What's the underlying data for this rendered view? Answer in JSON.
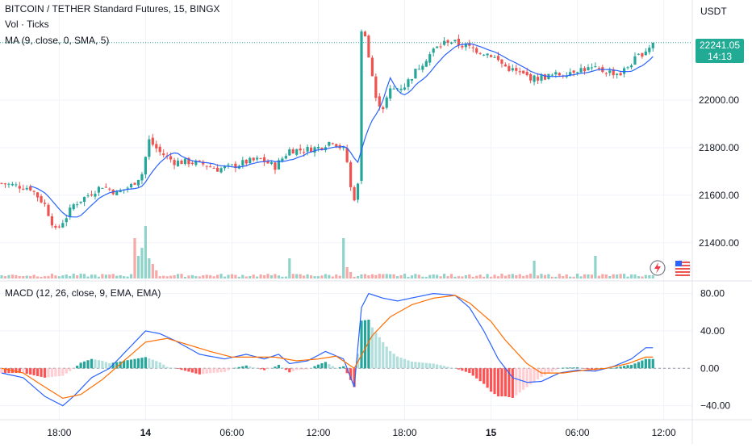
{
  "header": {
    "symbol_line": "BITCOIN / TETHER Standard Futures, 15, BINGX",
    "volume_label": "Vol · Ticks",
    "ma_label": "MA (9, close, 0, SMA, 5)",
    "macd_label": "MACD (12, 26, close, 9, EMA, EMA)",
    "unit": "USDT"
  },
  "last_price": {
    "value": "22241.05",
    "countdown": "14:13"
  },
  "colors": {
    "up": "#26a69a",
    "down": "#ef5350",
    "ma": "#2962ff",
    "macd": "#2962ff",
    "signal": "#ff6d00",
    "vol_up": "#8fd3ca",
    "vol_down": "#f7a9a7",
    "grid": "#f0f3fa"
  },
  "icons": [
    "lightning-icon",
    "us-flag-icon"
  ],
  "chart_data": [
    {
      "type": "candlestick",
      "title": "BITCOIN / TETHER Standard Futures, 15, BINGX",
      "ylabel": "USDT",
      "ylim": [
        21250,
        22420
      ],
      "y_ticks": [
        "21400.00",
        "21600.00",
        "21800.00",
        "22000.00"
      ],
      "x_ticks": [
        "18:00",
        "14",
        "06:00",
        "12:00",
        "18:00",
        "15",
        "06:00",
        "12:00"
      ],
      "x_tick_bold": [
        false,
        true,
        false,
        false,
        false,
        true,
        false,
        false
      ],
      "x_tick_index": [
        16,
        40,
        64,
        88,
        112,
        136,
        160,
        184
      ],
      "candles_count": 182,
      "price_keypoints": [
        [
          0,
          21650
        ],
        [
          4,
          21640
        ],
        [
          8,
          21630
        ],
        [
          12,
          21560
        ],
        [
          15,
          21450
        ],
        [
          18,
          21510
        ],
        [
          20,
          21560
        ],
        [
          24,
          21600
        ],
        [
          28,
          21640
        ],
        [
          32,
          21610
        ],
        [
          36,
          21640
        ],
        [
          39,
          21690
        ],
        [
          41,
          21830
        ],
        [
          44,
          21780
        ],
        [
          48,
          21740
        ],
        [
          52,
          21740
        ],
        [
          56,
          21730
        ],
        [
          60,
          21710
        ],
        [
          64,
          21720
        ],
        [
          68,
          21740
        ],
        [
          72,
          21750
        ],
        [
          76,
          21720
        ],
        [
          80,
          21790
        ],
        [
          84,
          21790
        ],
        [
          88,
          21800
        ],
        [
          92,
          21830
        ],
        [
          95,
          21790
        ],
        [
          96,
          21740
        ],
        [
          97,
          21630
        ],
        [
          98,
          21590
        ],
        [
          99,
          21640
        ],
        [
          100,
          22300
        ],
        [
          101,
          22280
        ],
        [
          102,
          22180
        ],
        [
          103,
          22100
        ],
        [
          104,
          22000
        ],
        [
          106,
          21970
        ],
        [
          108,
          22040
        ],
        [
          112,
          22060
        ],
        [
          116,
          22140
        ],
        [
          120,
          22210
        ],
        [
          124,
          22250
        ],
        [
          128,
          22230
        ],
        [
          132,
          22210
        ],
        [
          136,
          22190
        ],
        [
          140,
          22140
        ],
        [
          144,
          22110
        ],
        [
          148,
          22090
        ],
        [
          152,
          22100
        ],
        [
          156,
          22110
        ],
        [
          160,
          22130
        ],
        [
          164,
          22130
        ],
        [
          168,
          22120
        ],
        [
          172,
          22110
        ],
        [
          176,
          22170
        ],
        [
          179,
          22210
        ],
        [
          181,
          22241
        ]
      ],
      "ma_period": 9,
      "last_price": 22241.05
    },
    {
      "type": "bar",
      "title": "Vol · Ticks",
      "spikes": [
        [
          37,
          50
        ],
        [
          38,
          28
        ],
        [
          39,
          38
        ],
        [
          40,
          65
        ],
        [
          41,
          25
        ],
        [
          42,
          18
        ],
        [
          43,
          10
        ],
        [
          75,
          4
        ],
        [
          80,
          25
        ],
        [
          95,
          50
        ],
        [
          96,
          14
        ],
        [
          97,
          8
        ],
        [
          100,
          5
        ],
        [
          130,
          5
        ],
        [
          148,
          22
        ],
        [
          160,
          6
        ],
        [
          165,
          28
        ]
      ]
    },
    {
      "type": "line",
      "title": "MACD (12, 26, close, 9, EMA, EMA)",
      "ylim": [
        -55,
        90
      ],
      "y_ticks": [
        "80.00",
        "40.00",
        "0.00",
        "−40.00"
      ],
      "y_tick_values": [
        80,
        40,
        0,
        -40
      ],
      "series": [
        {
          "name": "MACD",
          "keypoints": [
            [
              0,
              -5
            ],
            [
              6,
              -10
            ],
            [
              12,
              -30
            ],
            [
              17,
              -40
            ],
            [
              20,
              -30
            ],
            [
              25,
              -10
            ],
            [
              30,
              0
            ],
            [
              35,
              20
            ],
            [
              40,
              40
            ],
            [
              44,
              37
            ],
            [
              48,
              30
            ],
            [
              55,
              15
            ],
            [
              62,
              10
            ],
            [
              68,
              15
            ],
            [
              73,
              10
            ],
            [
              77,
              15
            ],
            [
              80,
              5
            ],
            [
              85,
              8
            ],
            [
              90,
              18
            ],
            [
              95,
              10
            ],
            [
              98,
              -20
            ],
            [
              100,
              65
            ],
            [
              102,
              80
            ],
            [
              106,
              75
            ],
            [
              110,
              72
            ],
            [
              115,
              76
            ],
            [
              120,
              80
            ],
            [
              126,
              78
            ],
            [
              130,
              65
            ],
            [
              134,
              40
            ],
            [
              138,
              10
            ],
            [
              142,
              -10
            ],
            [
              146,
              -15
            ],
            [
              150,
              -14
            ],
            [
              155,
              -5
            ],
            [
              160,
              -2
            ],
            [
              165,
              -3
            ],
            [
              170,
              2
            ],
            [
              175,
              10
            ],
            [
              179,
              22
            ]
          ]
        },
        {
          "name": "Signal",
          "keypoints": [
            [
              0,
              0
            ],
            [
              6,
              -5
            ],
            [
              12,
              -20
            ],
            [
              17,
              -32
            ],
            [
              22,
              -28
            ],
            [
              28,
              -12
            ],
            [
              34,
              8
            ],
            [
              40,
              28
            ],
            [
              46,
              32
            ],
            [
              52,
              25
            ],
            [
              58,
              18
            ],
            [
              64,
              12
            ],
            [
              70,
              12
            ],
            [
              76,
              12
            ],
            [
              82,
              8
            ],
            [
              88,
              10
            ],
            [
              93,
              13
            ],
            [
              98,
              0
            ],
            [
              103,
              35
            ],
            [
              108,
              55
            ],
            [
              114,
              68
            ],
            [
              120,
              75
            ],
            [
              126,
              78
            ],
            [
              130,
              70
            ],
            [
              136,
              50
            ],
            [
              140,
              30
            ],
            [
              146,
              5
            ],
            [
              150,
              -5
            ],
            [
              156,
              -5
            ],
            [
              162,
              -2
            ],
            [
              168,
              0
            ],
            [
              174,
              5
            ],
            [
              179,
              12
            ]
          ]
        }
      ]
    }
  ]
}
